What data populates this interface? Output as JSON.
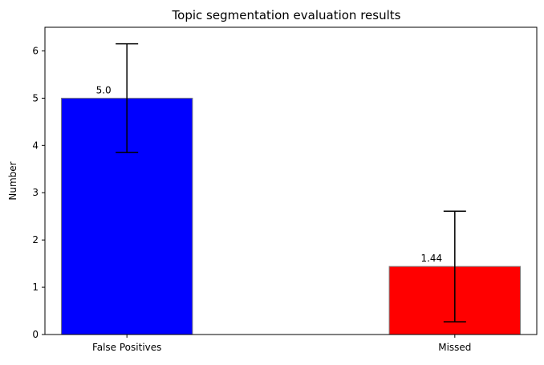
{
  "chart_data": {
    "type": "bar",
    "title": "Topic segmentation evaluation results",
    "xlabel": "",
    "ylabel": "Number",
    "categories": [
      "False Positives",
      "Missed"
    ],
    "values": [
      5.0,
      1.44
    ],
    "value_labels": [
      "5.0",
      "1.44"
    ],
    "error_bars": [
      1.15,
      1.17
    ],
    "colors": [
      "#0000ff",
      "#ff0000"
    ],
    "bar_edge_color": "#808080",
    "ylim": [
      0,
      6.5
    ],
    "yticks": [
      0,
      1,
      2,
      3,
      4,
      5,
      6
    ],
    "grid": false,
    "legend": "none"
  }
}
